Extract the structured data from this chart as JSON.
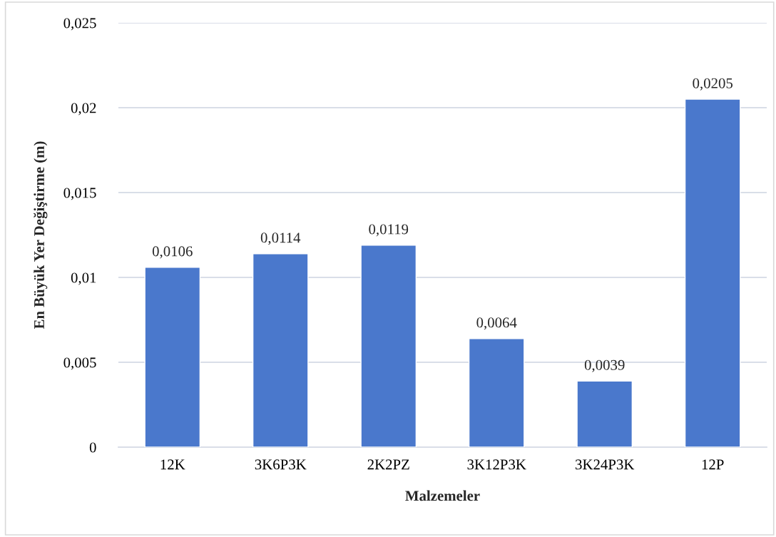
{
  "chart_data": {
    "type": "bar",
    "xlabel": "Malzemeler",
    "ylabel": "En Büyük Yer Değiştirme (m)",
    "categories": [
      "12K",
      "3K6P3K",
      "2K2PZ",
      "3K12P3K",
      "3K24P3K",
      "12P"
    ],
    "values": [
      0.0106,
      0.0114,
      0.0119,
      0.0064,
      0.0039,
      0.0205
    ],
    "value_labels": [
      "0,0106",
      "0,0114",
      "0,0119",
      "0,0064",
      "0,0039",
      "0,0205"
    ],
    "color": "#4a78cc",
    "ylim": [
      0,
      0.025
    ],
    "yticks": [
      {
        "value": 0,
        "label": "0"
      },
      {
        "value": 0.005,
        "label": "0,005"
      },
      {
        "value": 0.01,
        "label": "0,01"
      },
      {
        "value": 0.015,
        "label": "0,015"
      },
      {
        "value": 0.02,
        "label": "0,02"
      },
      {
        "value": 0.025,
        "label": "0,025"
      }
    ],
    "grid": "y",
    "legend": false
  }
}
